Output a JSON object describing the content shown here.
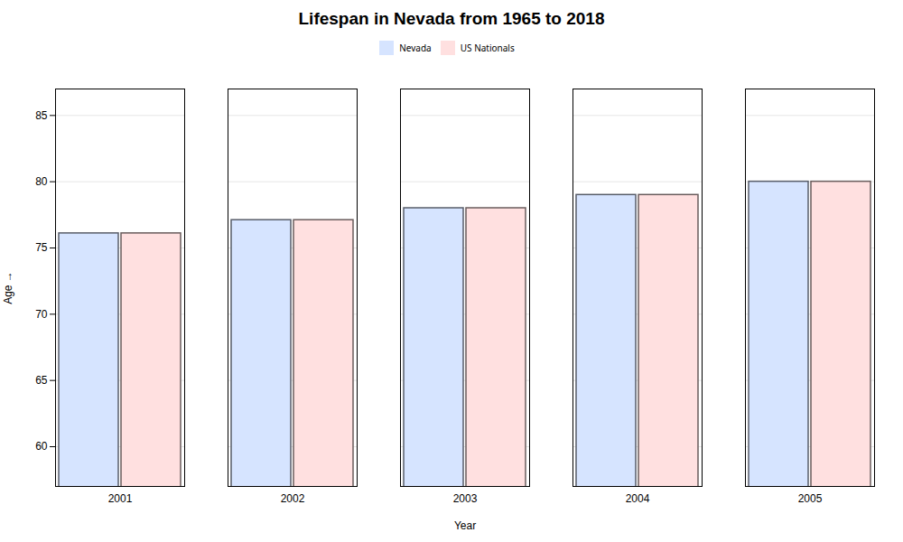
{
  "chart_data": {
    "type": "bar",
    "title": "Lifespan in Nevada from 1965 to 2018",
    "xlabel": "Year",
    "ylabel": "Age",
    "categories": [
      "2001",
      "2002",
      "2003",
      "2004",
      "2005"
    ],
    "series": [
      {
        "name": "Nevada",
        "color": "#d6e4ff",
        "values": [
          76.1,
          77.1,
          78.0,
          79.0,
          80.0
        ]
      },
      {
        "name": "US Nationals",
        "color": "#ffe0e0",
        "values": [
          76.1,
          77.1,
          78.0,
          79.0,
          80.0
        ]
      }
    ],
    "ylim": [
      57,
      87
    ],
    "yticks": [
      60,
      65,
      70,
      75,
      80,
      85
    ],
    "grid": true,
    "legend": "top"
  }
}
